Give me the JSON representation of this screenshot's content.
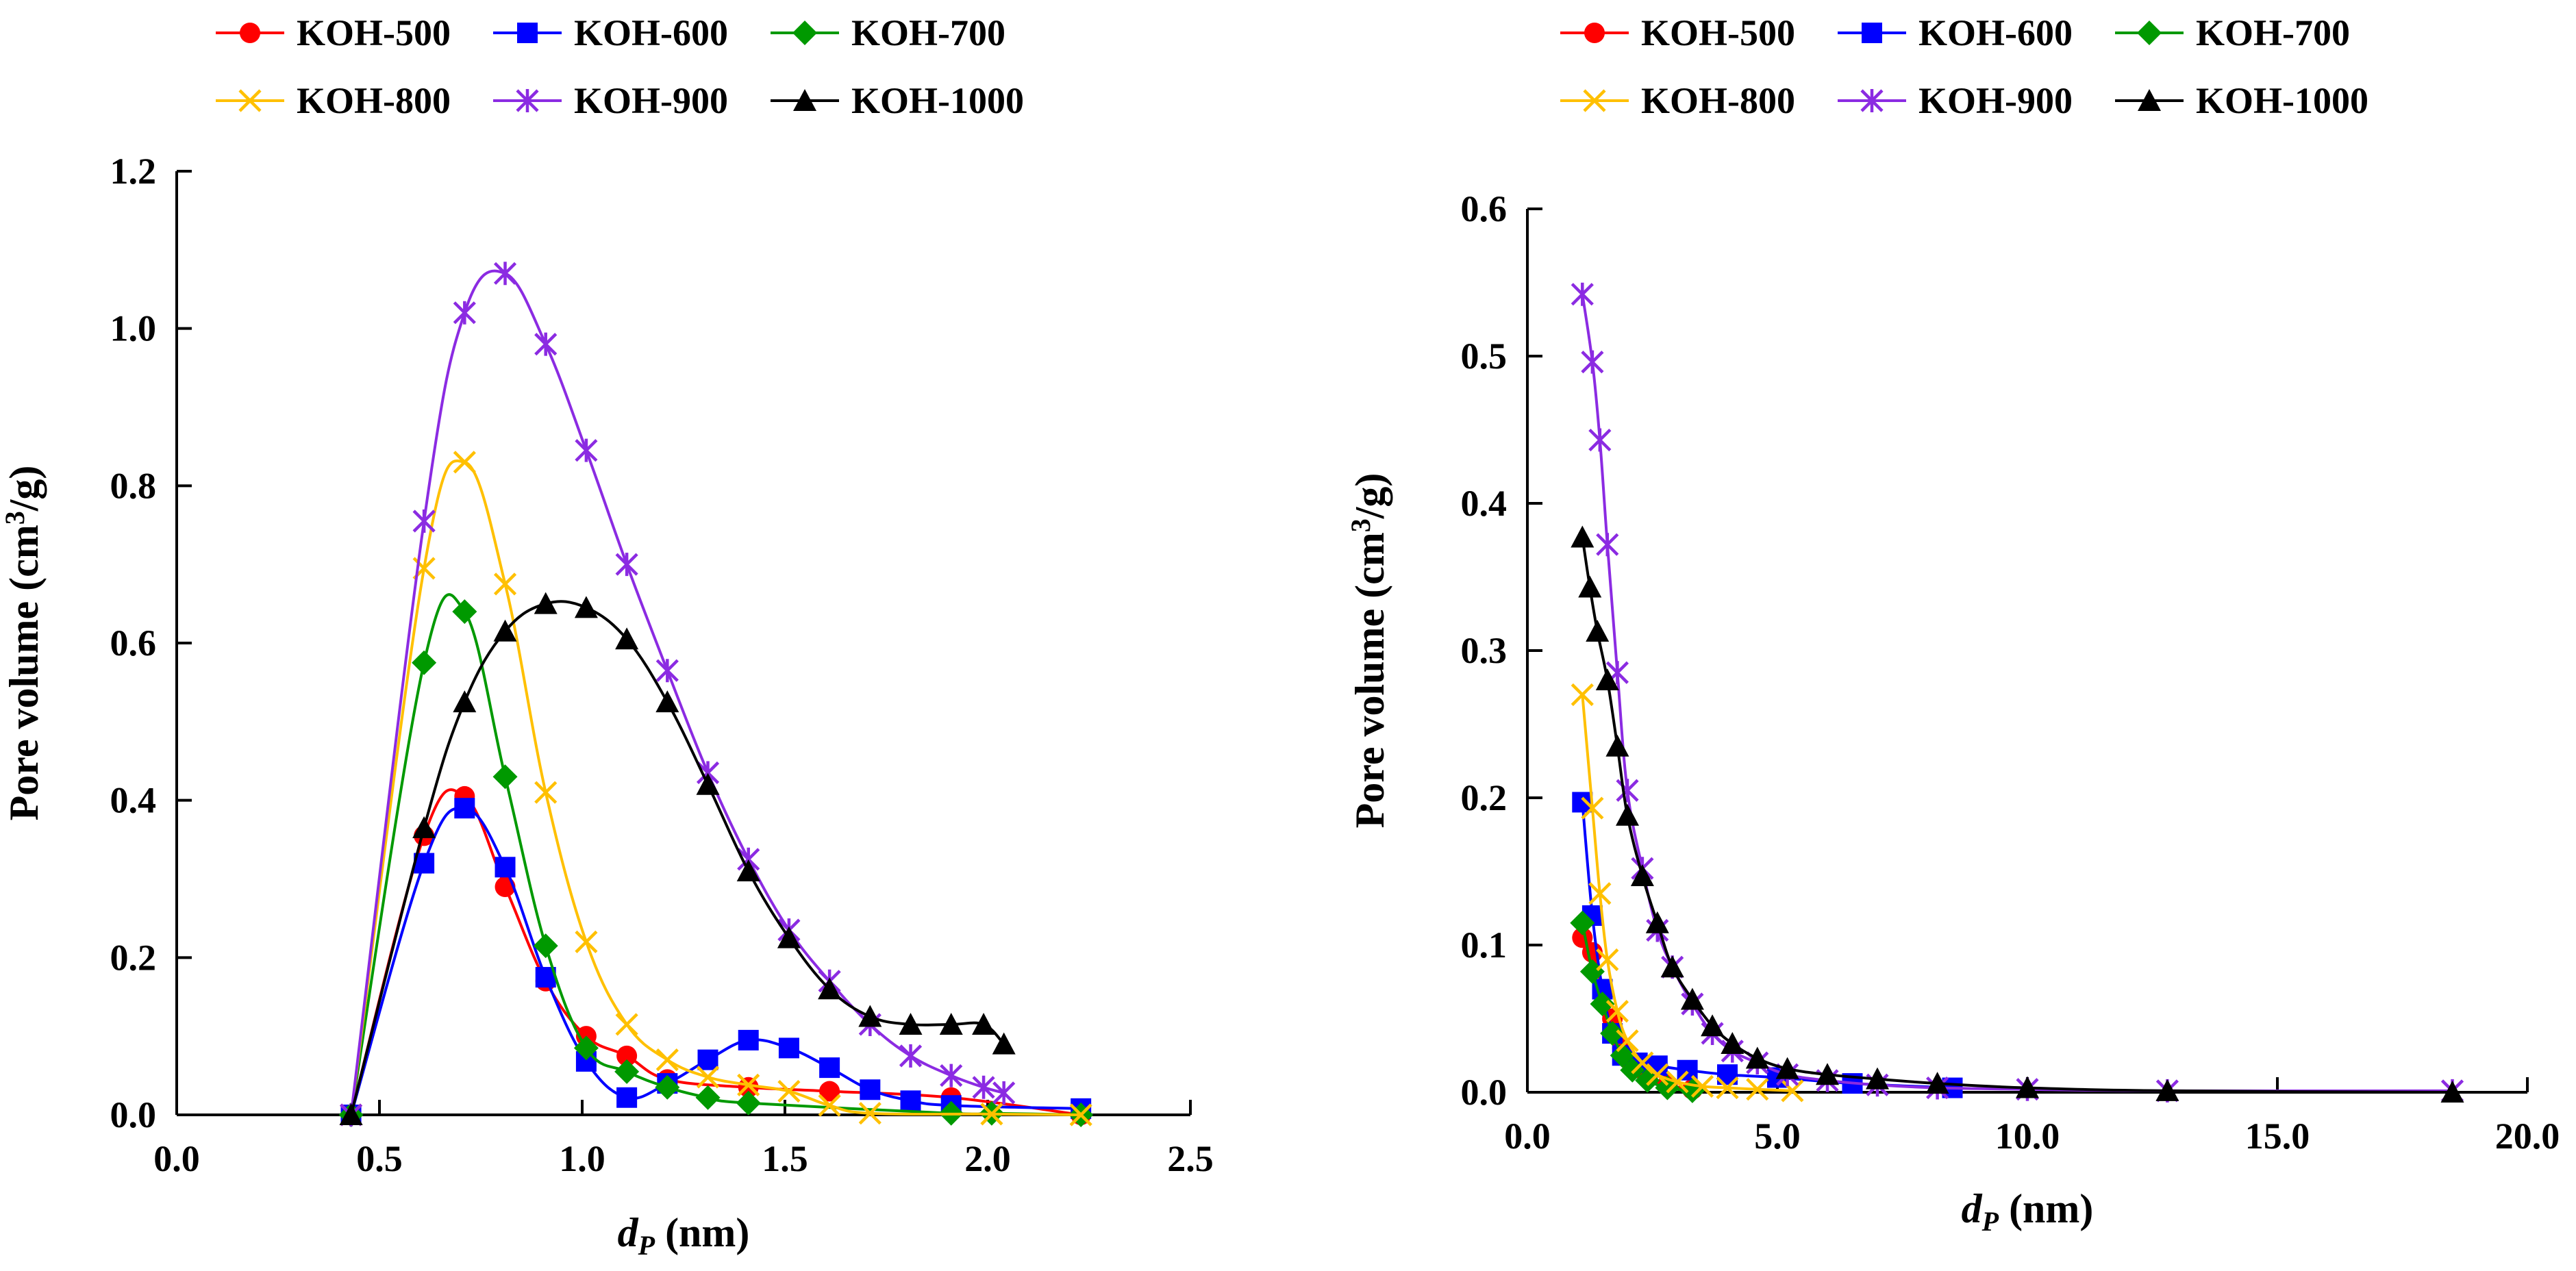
{
  "chart_data": [
    {
      "type": "line",
      "xlabel": {
        "main": "d",
        "sub": "P",
        "rest": " (nm)"
      },
      "ylabel": {
        "main": "Pore volume (cm",
        "sup": "3",
        "rest": "/g)"
      },
      "xlim": [
        0,
        2.5
      ],
      "ylim": [
        0,
        1.2
      ],
      "xticks": [
        0.0,
        0.5,
        1.0,
        1.5,
        2.0,
        2.5
      ],
      "xtick_labels": [
        "0.0",
        "0.5",
        "1.0",
        "1.5",
        "2.0",
        "2.5"
      ],
      "yticks": [
        0.0,
        0.2,
        0.4,
        0.6,
        0.8,
        1.0,
        1.2
      ],
      "ytick_labels": [
        "0.0",
        "0.2",
        "0.4",
        "0.6",
        "0.8",
        "1.0",
        "1.2"
      ],
      "grid": false,
      "legend_position": "top",
      "series": [
        {
          "name": "KOH-500",
          "color": "#ff0000",
          "marker": "circle",
          "x": [
            0.43,
            0.61,
            0.71,
            0.81,
            0.91,
            1.01,
            1.11,
            1.21,
            1.41,
            1.61,
            1.91,
            2.23
          ],
          "y": [
            0.0,
            0.355,
            0.405,
            0.29,
            0.17,
            0.1,
            0.075,
            0.045,
            0.035,
            0.03,
            0.022,
            0.0
          ]
        },
        {
          "name": "KOH-600",
          "color": "#0000ff",
          "marker": "square",
          "x": [
            0.43,
            0.61,
            0.71,
            0.81,
            0.91,
            1.01,
            1.11,
            1.21,
            1.31,
            1.41,
            1.51,
            1.61,
            1.71,
            1.81,
            1.91,
            2.23
          ],
          "y": [
            0.0,
            0.32,
            0.39,
            0.315,
            0.175,
            0.068,
            0.022,
            0.04,
            0.07,
            0.095,
            0.085,
            0.06,
            0.032,
            0.018,
            0.012,
            0.008
          ]
        },
        {
          "name": "KOH-700",
          "color": "#009900",
          "marker": "diamond",
          "x": [
            0.43,
            0.61,
            0.71,
            0.81,
            0.91,
            1.01,
            1.11,
            1.21,
            1.31,
            1.41,
            1.91,
            2.01,
            2.23
          ],
          "y": [
            0.0,
            0.575,
            0.64,
            0.43,
            0.215,
            0.085,
            0.055,
            0.035,
            0.022,
            0.015,
            0.002,
            0.002,
            0.0
          ]
        },
        {
          "name": "KOH-800",
          "color": "#ffc000",
          "marker": "x",
          "x": [
            0.43,
            0.61,
            0.71,
            0.81,
            0.91,
            1.01,
            1.11,
            1.21,
            1.31,
            1.41,
            1.51,
            1.61,
            1.71,
            2.01,
            2.23
          ],
          "y": [
            0.0,
            0.695,
            0.83,
            0.675,
            0.41,
            0.22,
            0.115,
            0.07,
            0.048,
            0.038,
            0.03,
            0.012,
            0.002,
            0.001,
            0.0
          ]
        },
        {
          "name": "KOH-900",
          "color": "#8b2be2",
          "marker": "asterisk",
          "x": [
            0.43,
            0.61,
            0.71,
            0.81,
            0.91,
            1.01,
            1.11,
            1.21,
            1.31,
            1.41,
            1.51,
            1.61,
            1.71,
            1.81,
            1.91,
            1.99,
            2.04
          ],
          "y": [
            0.0,
            0.755,
            1.02,
            1.07,
            0.98,
            0.845,
            0.7,
            0.565,
            0.435,
            0.325,
            0.235,
            0.17,
            0.115,
            0.075,
            0.05,
            0.035,
            0.028
          ]
        },
        {
          "name": "KOH-1000",
          "color": "#000000",
          "marker": "triangle",
          "x": [
            0.43,
            0.61,
            0.71,
            0.81,
            0.91,
            1.01,
            1.11,
            1.21,
            1.31,
            1.41,
            1.51,
            1.61,
            1.71,
            1.81,
            1.91,
            1.99,
            2.04
          ],
          "y": [
            0.0,
            0.365,
            0.525,
            0.615,
            0.65,
            0.645,
            0.605,
            0.525,
            0.42,
            0.31,
            0.225,
            0.16,
            0.125,
            0.115,
            0.115,
            0.115,
            0.09
          ]
        }
      ]
    },
    {
      "type": "line",
      "xlabel": {
        "main": "d",
        "sub": "P",
        "rest": " (nm)"
      },
      "ylabel": {
        "main": "Pore volume (cm",
        "sup": "3",
        "rest": "/g)"
      },
      "xlim": [
        0,
        20
      ],
      "ylim": [
        0,
        0.6
      ],
      "xticks": [
        0,
        5,
        10,
        15,
        20
      ],
      "xtick_labels": [
        "0.0",
        "5.0",
        "10.0",
        "15.0",
        "20.0"
      ],
      "yticks": [
        0.0,
        0.1,
        0.2,
        0.3,
        0.4,
        0.5,
        0.6
      ],
      "ytick_labels": [
        "0.0",
        "0.1",
        "0.2",
        "0.3",
        "0.4",
        "0.5",
        "0.6"
      ],
      "grid": false,
      "legend_position": "top",
      "series": [
        {
          "name": "KOH-500",
          "color": "#ff0000",
          "marker": "circle",
          "x": [
            1.1,
            1.3,
            1.5,
            1.7,
            1.9,
            2.1,
            2.4,
            2.8,
            3.3
          ],
          "y": [
            0.105,
            0.095,
            0.07,
            0.05,
            0.03,
            0.02,
            0.01,
            0.005,
            0.002
          ]
        },
        {
          "name": "KOH-600",
          "color": "#0000ff",
          "marker": "square",
          "x": [
            1.1,
            1.3,
            1.5,
            1.7,
            1.9,
            2.2,
            2.6,
            3.2,
            4.0,
            5.0,
            6.5,
            8.5
          ],
          "y": [
            0.197,
            0.12,
            0.07,
            0.04,
            0.025,
            0.02,
            0.018,
            0.015,
            0.012,
            0.01,
            0.006,
            0.003
          ]
        },
        {
          "name": "KOH-700",
          "color": "#009900",
          "marker": "diamond",
          "x": [
            1.1,
            1.3,
            1.5,
            1.7,
            1.9,
            2.1,
            2.4,
            2.8,
            3.3
          ],
          "y": [
            0.115,
            0.082,
            0.06,
            0.04,
            0.025,
            0.015,
            0.008,
            0.003,
            0.001
          ]
        },
        {
          "name": "KOH-800",
          "color": "#ffc000",
          "marker": "x",
          "x": [
            1.1,
            1.3,
            1.45,
            1.6,
            1.8,
            2.0,
            2.3,
            2.6,
            3.0,
            3.5,
            4.0,
            4.6,
            5.3
          ],
          "y": [
            0.27,
            0.193,
            0.135,
            0.09,
            0.055,
            0.035,
            0.02,
            0.012,
            0.007,
            0.004,
            0.003,
            0.002,
            0.001
          ]
        },
        {
          "name": "KOH-900",
          "color": "#8b2be2",
          "marker": "asterisk",
          "x": [
            1.1,
            1.3,
            1.45,
            1.6,
            1.8,
            2.0,
            2.3,
            2.6,
            2.9,
            3.3,
            3.7,
            4.1,
            4.6,
            5.2,
            6.0,
            7.0,
            8.2,
            10.0,
            12.8,
            18.5
          ],
          "y": [
            0.542,
            0.496,
            0.443,
            0.372,
            0.285,
            0.205,
            0.152,
            0.11,
            0.085,
            0.06,
            0.04,
            0.028,
            0.02,
            0.012,
            0.008,
            0.005,
            0.003,
            0.002,
            0.001,
            0.001
          ]
        },
        {
          "name": "KOH-1000",
          "color": "#000000",
          "marker": "triangle",
          "x": [
            1.1,
            1.25,
            1.4,
            1.6,
            1.8,
            2.0,
            2.3,
            2.6,
            2.9,
            3.3,
            3.7,
            4.1,
            4.6,
            5.2,
            6.0,
            7.0,
            8.2,
            10.0,
            12.8,
            18.5
          ],
          "y": [
            0.377,
            0.343,
            0.313,
            0.28,
            0.235,
            0.188,
            0.147,
            0.115,
            0.085,
            0.063,
            0.045,
            0.033,
            0.023,
            0.016,
            0.012,
            0.009,
            0.006,
            0.003,
            0.001,
            0.0
          ]
        }
      ]
    }
  ]
}
